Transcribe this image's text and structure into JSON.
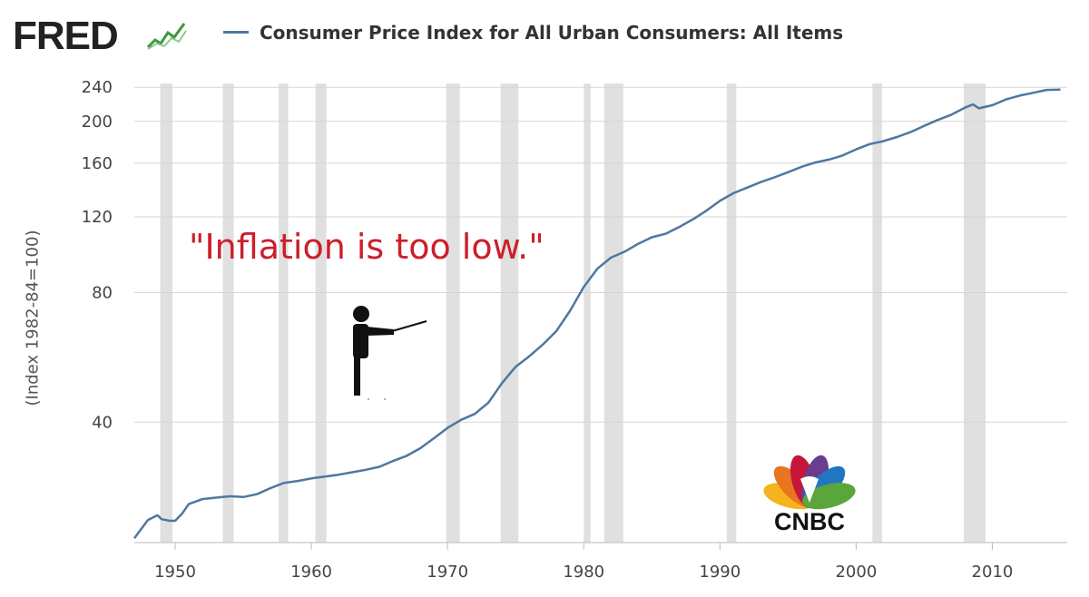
{
  "header": {
    "logo_text": "FRED",
    "logo_icon": "line-chart-icon",
    "legend_label": "Consumer Price Index for All Urban Consumers: All Items"
  },
  "colors": {
    "series": "#4f77a0",
    "recession": "#e0e0e0",
    "grid": "#d5d5d5",
    "annotation": "#cc1f2a"
  },
  "annotation": {
    "text": "\"Inflation is too low.\"",
    "icon": "teacher-pointing-icon"
  },
  "watermark": {
    "logo_text": "CNBC",
    "logo_icon": "peacock-logo-icon"
  },
  "chart_data": {
    "type": "line",
    "title": "Consumer Price Index for All Urban Consumers: All Items",
    "xlabel": "",
    "ylabel": "(Index 1982-84=100)",
    "yscale": "log",
    "xlim": [
      1947,
      2015.5
    ],
    "ylim": [
      21,
      245
    ],
    "grid": true,
    "legend": "top",
    "x_ticks": [
      {
        "value": 1950,
        "label": "1950"
      },
      {
        "value": 1960,
        "label": "1960"
      },
      {
        "value": 1970,
        "label": "1970"
      },
      {
        "value": 1980,
        "label": "1980"
      },
      {
        "value": 1990,
        "label": "1990"
      },
      {
        "value": 2000,
        "label": "2000"
      },
      {
        "value": 2010,
        "label": "2010"
      }
    ],
    "y_ticks": [
      {
        "value": 40,
        "label": "40"
      },
      {
        "value": 80,
        "label": "80"
      },
      {
        "value": 120,
        "label": "120"
      },
      {
        "value": 160,
        "label": "160"
      },
      {
        "value": 200,
        "label": "200"
      },
      {
        "value": 240,
        "label": "240"
      }
    ],
    "recessions": [
      [
        1948.9,
        1949.8
      ],
      [
        1953.5,
        1954.3
      ],
      [
        1957.6,
        1958.3
      ],
      [
        1960.3,
        1961.1
      ],
      [
        1969.9,
        1970.9
      ],
      [
        1973.9,
        1975.2
      ],
      [
        1980.0,
        1980.5
      ],
      [
        1981.5,
        1982.9
      ],
      [
        1990.5,
        1991.2
      ],
      [
        2001.2,
        2001.9
      ],
      [
        2007.9,
        2009.5
      ]
    ],
    "series": [
      {
        "name": "Consumer Price Index for All Urban Consumers: All Items",
        "x": [
          1947,
          1948,
          1948.7,
          1949,
          1949.6,
          1950,
          1950.5,
          1951,
          1952,
          1953,
          1954,
          1955,
          1956,
          1957,
          1958,
          1959,
          1960,
          1961,
          1962,
          1963,
          1964,
          1965,
          1966,
          1967,
          1968,
          1969,
          1970,
          1971,
          1972,
          1973,
          1974,
          1975,
          1976,
          1977,
          1978,
          1979,
          1980,
          1981,
          1982,
          1983,
          1984,
          1985,
          1986,
          1987,
          1988,
          1989,
          1990,
          1991,
          1992,
          1993,
          1994,
          1995,
          1996,
          1997,
          1998,
          1999,
          2000,
          2001,
          2002,
          2003,
          2004,
          2005,
          2006,
          2007,
          2008,
          2008.6,
          2009,
          2010,
          2011,
          2012,
          2013,
          2014,
          2015
        ],
        "values": [
          21.5,
          23.7,
          24.3,
          23.8,
          23.6,
          23.6,
          24.5,
          25.8,
          26.5,
          26.7,
          26.9,
          26.8,
          27.2,
          28.1,
          28.9,
          29.2,
          29.6,
          29.9,
          30.2,
          30.6,
          31.0,
          31.5,
          32.5,
          33.4,
          34.8,
          36.7,
          38.8,
          40.5,
          41.8,
          44.4,
          49.3,
          53.8,
          56.9,
          60.6,
          65.2,
          72.6,
          82.4,
          90.9,
          96.5,
          99.6,
          103.9,
          107.6,
          109.6,
          113.6,
          118.3,
          124.0,
          130.7,
          136.2,
          140.3,
          144.5,
          148.2,
          152.4,
          156.9,
          160.5,
          163.0,
          166.6,
          172.2,
          177.1,
          179.9,
          184.0,
          188.9,
          195.3,
          201.6,
          207.3,
          215.3,
          219.0,
          214.5,
          218.1,
          224.9,
          229.6,
          233.0,
          236.7,
          237.0
        ]
      }
    ]
  }
}
